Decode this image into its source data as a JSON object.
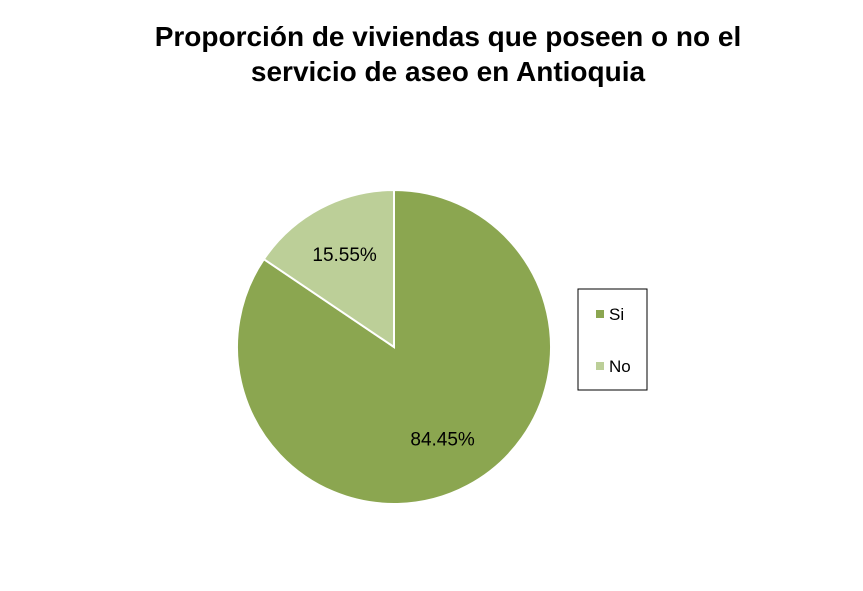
{
  "chart_data": {
    "type": "pie",
    "title_lines": [
      "Proporción de viviendas que poseen o no el",
      "servicio de aseo en Antioquia"
    ],
    "slices": [
      {
        "label": "Si",
        "value": 84.45,
        "display": "84.45%",
        "color": "#8ba650"
      },
      {
        "label": "No",
        "value": 15.55,
        "display": "15.55%",
        "color": "#bccf98"
      }
    ],
    "legend": {
      "position": "right",
      "entries": [
        "Si",
        "No"
      ]
    },
    "start_angle_deg": 0,
    "direction": "clockwise"
  }
}
